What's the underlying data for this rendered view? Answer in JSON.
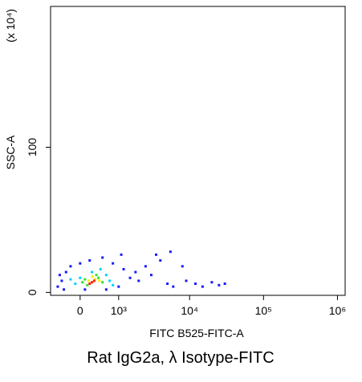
{
  "chart_data": {
    "type": "scatter",
    "x_label": "FITC B525-FITC-A",
    "y_label": "SSC-A",
    "y_unit_label": "(x 10⁴)",
    "caption": "Rat IgG2a, λ Isotype-FITC",
    "xscale": "asinh",
    "asinh_cofactor": 663,
    "xlim": [
      -700,
      1270000
    ],
    "xticks": [
      0,
      {
        "value": 1000,
        "label": "10³"
      },
      {
        "value": 10000,
        "label": "10⁴"
      },
      {
        "value": 100000,
        "label": "10⁵"
      },
      {
        "value": 1000000,
        "label": "10⁶"
      }
    ],
    "ylim": [
      -2,
      197
    ],
    "yticks": [
      0,
      100
    ],
    "series": [
      {
        "color": "#1a1aff",
        "x": [
          -400,
          -500,
          -300,
          -200,
          0,
          200,
          500,
          800,
          1200,
          1500,
          2000,
          1000,
          -350,
          100,
          600,
          1800,
          2500,
          3000,
          4000,
          5000,
          6000,
          8000,
          9000,
          12000,
          15000,
          20000,
          25000,
          30000,
          3500,
          5500,
          1100,
          -450
        ],
        "values": [
          8,
          4,
          14,
          18,
          20,
          22,
          24,
          20,
          16,
          10,
          8,
          4,
          2,
          2,
          2,
          14,
          18,
          12,
          22,
          6,
          4,
          18,
          8,
          6,
          4,
          7,
          5,
          6,
          26,
          28,
          26,
          12
        ]
      },
      {
        "color": "#00d0ff",
        "x": [
          0,
          600,
          700,
          -100,
          250,
          800,
          -200,
          450
        ],
        "values": [
          10,
          12,
          8,
          6,
          14,
          5,
          9,
          16
        ]
      },
      {
        "color": "#30e030",
        "x": [
          100,
          400,
          500,
          150,
          350,
          50
        ],
        "values": [
          9,
          10,
          7,
          5,
          12,
          7
        ]
      },
      {
        "color": "#ffee00",
        "x": [
          180,
          320,
          260,
          420
        ],
        "values": [
          8,
          9,
          11,
          8
        ]
      },
      {
        "color": "#ff2000",
        "x": [
          250,
          300,
          200
        ],
        "values": [
          7,
          8,
          6
        ]
      }
    ]
  }
}
